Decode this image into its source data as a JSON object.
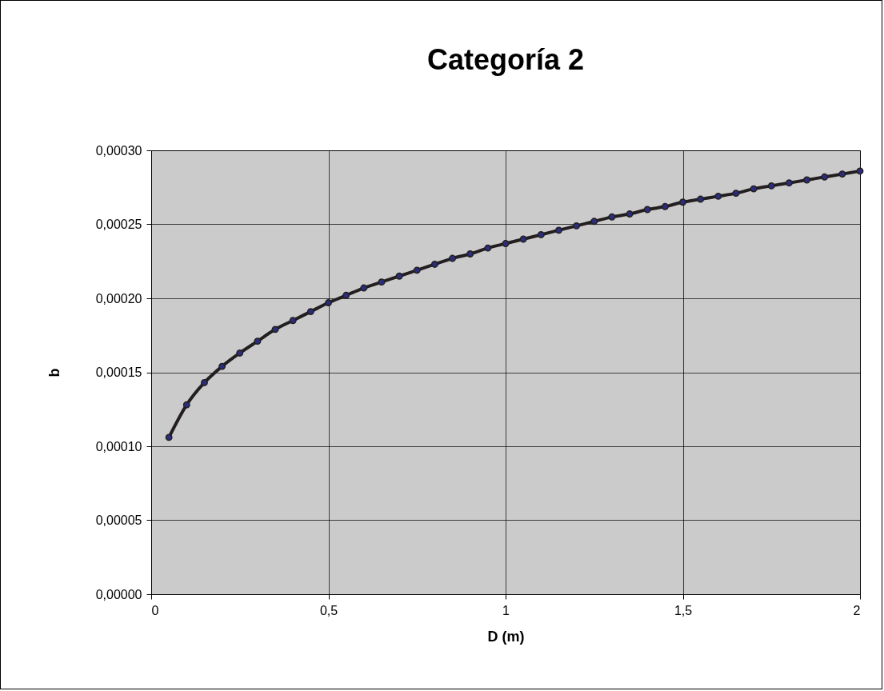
{
  "chart_data": {
    "type": "line",
    "title": "Categoría 2",
    "xlabel": "D (m)",
    "ylabel": "b",
    "x": [
      0.05,
      0.1,
      0.15,
      0.2,
      0.25,
      0.3,
      0.35,
      0.4,
      0.45,
      0.5,
      0.55,
      0.6,
      0.65,
      0.7,
      0.75,
      0.8,
      0.85,
      0.9,
      0.95,
      1.0,
      1.05,
      1.1,
      1.15,
      1.2,
      1.25,
      1.3,
      1.35,
      1.4,
      1.45,
      1.5,
      1.55,
      1.6,
      1.65,
      1.7,
      1.75,
      1.8,
      1.85,
      1.9,
      1.95,
      2.0
    ],
    "series": [
      {
        "color": "#231f20",
        "values": [
          0.000106,
          0.000128,
          0.000143,
          0.000154,
          0.000163,
          0.000171,
          0.000179,
          0.000185,
          0.000191,
          0.000197,
          0.000202,
          0.000207,
          0.000211,
          0.000215,
          0.000219,
          0.000223,
          0.000227,
          0.00023,
          0.000234,
          0.000237,
          0.00024,
          0.000243,
          0.000246,
          0.000249,
          0.000252,
          0.000255,
          0.000257,
          0.00026,
          0.000262,
          0.000265,
          0.000267,
          0.000269,
          0.000271,
          0.000274,
          0.000276,
          0.000278,
          0.00028,
          0.000282,
          0.000284,
          0.000286
        ]
      }
    ],
    "xlim": [
      0,
      2
    ],
    "ylim": [
      0,
      0.0003
    ],
    "xticks": [
      0,
      {
        "value": 0.5,
        "label": "0,5"
      },
      1,
      {
        "value": 1.5,
        "label": "1,5"
      },
      2
    ],
    "yticks": [
      {
        "value": 0,
        "label": "0,00000"
      },
      {
        "value": 5e-05,
        "label": "0,00005"
      },
      {
        "value": 0.0001,
        "label": "0,00010"
      },
      {
        "value": 0.00015,
        "label": "0,00015"
      },
      {
        "value": 0.0002,
        "label": "0,00020"
      },
      {
        "value": 0.00025,
        "label": "0,00025"
      },
      {
        "value": 0.0003,
        "label": "0,00030"
      }
    ],
    "grid": true,
    "marker": "circle",
    "line_style": "solid"
  }
}
